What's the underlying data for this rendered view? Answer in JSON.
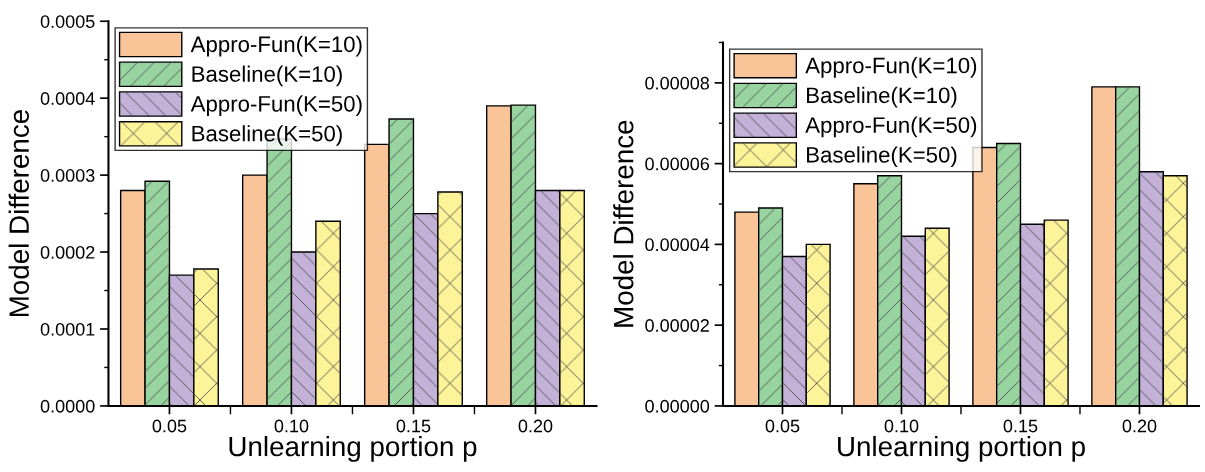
{
  "chart_data": [
    {
      "type": "bar",
      "xlabel": "Unlearning portion p",
      "ylabel": "Model Difference",
      "categories": [
        "0.05",
        "0.10",
        "0.15",
        "0.20"
      ],
      "series": [
        {
          "name": "Appro-Fun(K=10)",
          "color": "#f9c598",
          "values": [
            0.00028,
            0.0003,
            0.00034,
            0.00039
          ]
        },
        {
          "name": "Baseline(K=10)",
          "color": "#98d4a0",
          "values": [
            0.000292,
            0.000347,
            0.000373,
            0.000391
          ]
        },
        {
          "name": "Appro-Fun(K=50)",
          "color": "#c3b1d8",
          "values": [
            0.00017,
            0.0002,
            0.00025,
            0.00028
          ]
        },
        {
          "name": "Baseline(K=50)",
          "color": "#fdf49a",
          "values": [
            0.000178,
            0.00024,
            0.000278,
            0.00028
          ]
        }
      ],
      "ylim": [
        0,
        0.0005
      ],
      "yticks": [
        {
          "value": 0,
          "label": "0.0000"
        },
        {
          "value": 0.0001,
          "label": "0.0001"
        },
        {
          "value": 0.0002,
          "label": "0.0002"
        },
        {
          "value": 0.0003,
          "label": "0.0003"
        },
        {
          "value": 0.0004,
          "label": "0.0004"
        },
        {
          "value": 0.0005,
          "label": "0.0005"
        }
      ],
      "legend": "top left",
      "grid": false
    },
    {
      "type": "bar",
      "xlabel": "Unlearning portion p",
      "ylabel": "Model Difference",
      "categories": [
        "0.05",
        "0.10",
        "0.15",
        "0.20"
      ],
      "series": [
        {
          "name": "Appro-Fun(K=10)",
          "color": "#f9c598",
          "values": [
            4.8e-05,
            5.5e-05,
            6.4e-05,
            7.9e-05
          ]
        },
        {
          "name": "Baseline(K=10)",
          "color": "#98d4a0",
          "values": [
            4.9e-05,
            5.7e-05,
            6.5e-05,
            7.9e-05
          ]
        },
        {
          "name": "Appro-Fun(K=50)",
          "color": "#c3b1d8",
          "values": [
            3.7e-05,
            4.2e-05,
            4.5e-05,
            5.8e-05
          ]
        },
        {
          "name": "Baseline(K=50)",
          "color": "#fdf49a",
          "values": [
            4e-05,
            4.4e-05,
            4.6e-05,
            5.7e-05
          ]
        }
      ],
      "ylim": [
        0,
        9e-05
      ],
      "yticks": [
        {
          "value": 0,
          "label": "0.00000"
        },
        {
          "value": 2e-05,
          "label": "0.00002"
        },
        {
          "value": 4e-05,
          "label": "0.00004"
        },
        {
          "value": 6e-05,
          "label": "0.00006"
        },
        {
          "value": 8e-05,
          "label": "0.00008"
        }
      ],
      "legend": "top left",
      "grid": false
    }
  ]
}
